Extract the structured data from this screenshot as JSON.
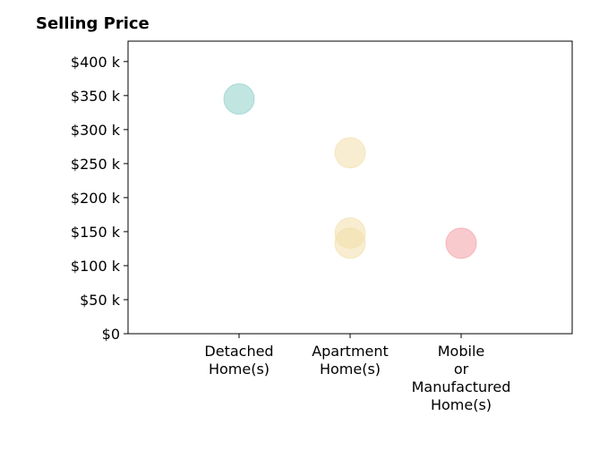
{
  "chart_data": {
    "type": "scatter",
    "title": "Selling Price",
    "xlabel": "",
    "ylabel": "",
    "categories": [
      [
        "Detached",
        "Home(s)"
      ],
      [
        "Apartment",
        "Home(s)"
      ],
      [
        "Mobile",
        "or",
        "Manufactured",
        "Home(s)"
      ]
    ],
    "ylim": [
      0,
      430000
    ],
    "yticks": [
      {
        "value": 0,
        "label": "$0"
      },
      {
        "value": 50000,
        "label": "$50 k"
      },
      {
        "value": 100000,
        "label": "$100 k"
      },
      {
        "value": 150000,
        "label": "$150 k"
      },
      {
        "value": 200000,
        "label": "$200 k"
      },
      {
        "value": 250000,
        "label": "$250 k"
      },
      {
        "value": 300000,
        "label": "$300 k"
      },
      {
        "value": 350000,
        "label": "$350 k"
      },
      {
        "value": 400000,
        "label": "$400 k"
      }
    ],
    "grid": false,
    "points": [
      {
        "category": 0,
        "y": 345000,
        "color": "#8ecfc9"
      },
      {
        "category": 1,
        "y": 266000,
        "color": "#f3deaa"
      },
      {
        "category": 1,
        "y": 148000,
        "color": "#f3deaa"
      },
      {
        "category": 1,
        "y": 133000,
        "color": "#f3deaa"
      },
      {
        "category": 2,
        "y": 133000,
        "color": "#f49ea4"
      }
    ],
    "point_opacity": 0.55
  }
}
